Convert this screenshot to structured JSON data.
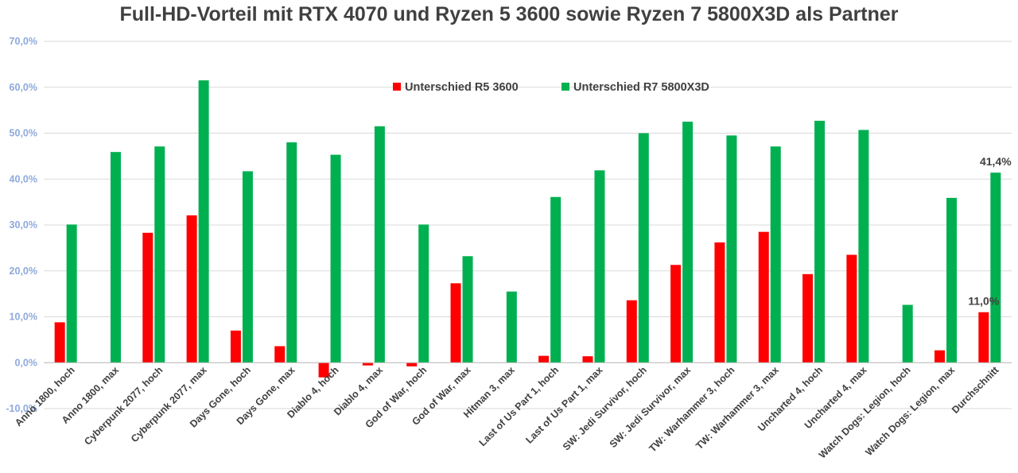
{
  "chart_data": {
    "type": "bar",
    "title": "Full-HD-Vorteil mit RTX 4070 und Ryzen 5 3600 sowie Ryzen 7 5800X3D als Partner",
    "xlabel": "",
    "ylabel": "",
    "ylim": [
      -10,
      70
    ],
    "yticks": [
      "-10,0%",
      "0,0%",
      "10,0%",
      "20,0%",
      "30,0%",
      "40,0%",
      "50,0%",
      "60,0%",
      "70,0%"
    ],
    "grid": true,
    "legend": "top-center",
    "categories": [
      "Anno 1800, hoch",
      "Anno 1800, max",
      "Cyberpunk 2077, hoch",
      "Cyberpunk 2077, max",
      "Days Gone, hoch",
      "Days Gone, max",
      "Diablo 4, hoch",
      "Diablo 4, max",
      "God of War, hoch",
      "God of War, max",
      "Hitman 3, max",
      "Last of Us Part 1, hoch",
      "Last of Us Part 1, max",
      "SW: Jedi Survivor, hoch",
      "SW: Jedi Survivor, max",
      "TW: Warhammer 3, hoch",
      "TW: Warhammer 3, max",
      "Uncharted 4, hoch",
      "Uncharted 4, max",
      "Watch Dogs: Legion, hoch",
      "Watch Dogs: Legion, max",
      "Durchschnitt"
    ],
    "series": [
      {
        "name": "Unterschied R5 3600",
        "color": "#FF0000",
        "values": [
          8.8,
          0,
          28.3,
          32.1,
          7.0,
          3.6,
          -3.2,
          -0.6,
          -0.8,
          17.3,
          0,
          1.5,
          1.4,
          13.6,
          21.3,
          26.2,
          28.5,
          19.3,
          23.5,
          0,
          2.7,
          11.0
        ]
      },
      {
        "name": "Unterschied R7 5800X3D",
        "color": "#00B050",
        "values": [
          30.1,
          45.9,
          47.1,
          61.5,
          41.7,
          48.0,
          45.3,
          51.5,
          30.1,
          23.2,
          15.5,
          36.1,
          41.9,
          50.0,
          52.5,
          49.5,
          47.1,
          52.7,
          50.7,
          12.6,
          35.9,
          41.4
        ]
      }
    ],
    "annotations": [
      {
        "category": "Durchschnitt",
        "series": "Unterschied R5 3600",
        "text": "11,0%"
      },
      {
        "category": "Durchschnitt",
        "series": "Unterschied R7 5800X3D",
        "text": "41,4%"
      }
    ]
  }
}
